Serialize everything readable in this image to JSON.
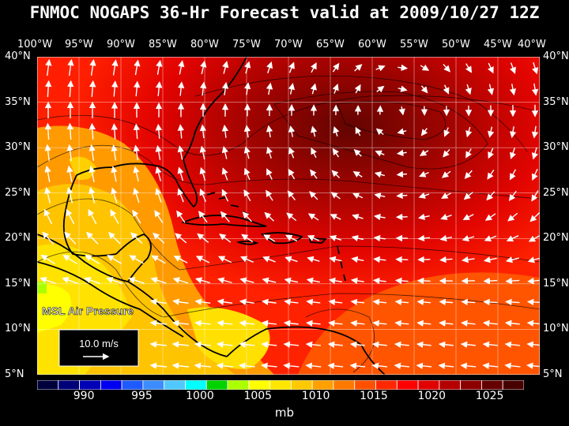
{
  "title": "FNMOC NOGAPS 36-Hr Forecast valid at 2009/10/27 12Z",
  "lon_labels": [
    "100°W",
    "95°W",
    "90°W",
    "85°W",
    "80°W",
    "75°W",
    "70°W",
    "65°W",
    "60°W",
    "55°W",
    "50°W",
    "45°W",
    "40°W"
  ],
  "lat_labels": [
    "40°N",
    "35°N",
    "30°N",
    "25°N",
    "20°N",
    "15°N",
    "10°N",
    "5°N"
  ],
  "field_label": "MSL Air Pressure",
  "vector_scale_label": "10.0 m/s",
  "colorbar_labels": [
    "990",
    "995",
    "1000",
    "1005",
    "1010",
    "1015",
    "1020",
    "1025"
  ],
  "unit": "mb",
  "colors": {
    "bar": [
      "#00003c",
      "#000078",
      "#0000b4",
      "#0000f0",
      "#1e5aff",
      "#3c8cff",
      "#50c8ff",
      "#00ffff",
      "#00d200",
      "#aaff00",
      "#ffff00",
      "#ffe600",
      "#ffc800",
      "#ffa000",
      "#ff7800",
      "#ff5000",
      "#ff2800",
      "#ff0000",
      "#e10000",
      "#b40000",
      "#8c0000",
      "#640000",
      "#460000"
    ],
    "land_outline": "#000000",
    "grid": "#ffffff"
  },
  "chart_data": {
    "type": "heatmap",
    "title": "FNMOC NOGAPS 36-Hr Forecast valid at 2009/10/27 12Z",
    "xlim": [
      -100,
      -40
    ],
    "ylim": [
      5,
      40
    ],
    "x_ticks": [
      -100,
      -95,
      -90,
      -85,
      -80,
      -75,
      -70,
      -65,
      -60,
      -55,
      -50,
      -45,
      -40
    ],
    "y_ticks": [
      5,
      10,
      15,
      20,
      25,
      30,
      35,
      40
    ],
    "colorbar_range": [
      986,
      1028
    ],
    "grid": true
  }
}
